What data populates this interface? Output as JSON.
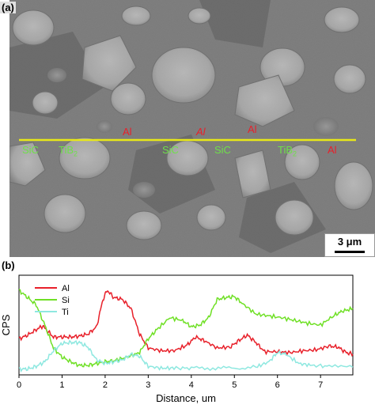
{
  "panel_a": {
    "label": "(a)",
    "phase_labels": [
      {
        "text": "Al",
        "color": "#e8202a"
      },
      {
        "text": "Al",
        "color": "#e8202a"
      },
      {
        "text": "Al",
        "color": "#e8202a"
      },
      {
        "text": "SiC",
        "color": "#6fe04a"
      },
      {
        "text": "TiB",
        "sub": "2",
        "color": "#6fe04a"
      },
      {
        "text": "SiC",
        "color": "#6fe04a"
      },
      {
        "text": "SiC",
        "color": "#6fe04a"
      },
      {
        "text": "TiB",
        "sub": "2",
        "color": "#6fe04a"
      },
      {
        "text": "Al",
        "color": "#e8202a"
      }
    ],
    "scan_line_color": "#e8e818",
    "scale_bar": "3 μm"
  },
  "panel_b": {
    "label": "(b)"
  },
  "chart_data": {
    "type": "line",
    "xlabel": "Distance, um",
    "ylabel": "CPS",
    "xlim": [
      0,
      7.75
    ],
    "x_ticks": [
      "0",
      "1",
      "2",
      "3",
      "4",
      "5",
      "6",
      "7"
    ],
    "y_ticks_labeled": false,
    "legend_position": "top-left",
    "series": [
      {
        "name": "Al",
        "color": "#e8202a",
        "points": [
          [
            0,
            0.35
          ],
          [
            0.2,
            0.39
          ],
          [
            0.4,
            0.45
          ],
          [
            0.55,
            0.49
          ],
          [
            0.65,
            0.44
          ],
          [
            0.8,
            0.37
          ],
          [
            1.0,
            0.37
          ],
          [
            1.2,
            0.37
          ],
          [
            1.4,
            0.38
          ],
          [
            1.6,
            0.4
          ],
          [
            1.8,
            0.48
          ],
          [
            1.95,
            0.78
          ],
          [
            2.05,
            0.88
          ],
          [
            2.2,
            0.8
          ],
          [
            2.4,
            0.78
          ],
          [
            2.6,
            0.68
          ],
          [
            2.8,
            0.4
          ],
          [
            3.0,
            0.25
          ],
          [
            3.3,
            0.22
          ],
          [
            3.6,
            0.22
          ],
          [
            3.9,
            0.28
          ],
          [
            4.1,
            0.37
          ],
          [
            4.3,
            0.33
          ],
          [
            4.6,
            0.25
          ],
          [
            4.9,
            0.26
          ],
          [
            5.1,
            0.33
          ],
          [
            5.3,
            0.39
          ],
          [
            5.5,
            0.31
          ],
          [
            5.7,
            0.21
          ],
          [
            6.0,
            0.21
          ],
          [
            6.3,
            0.2
          ],
          [
            6.6,
            0.22
          ],
          [
            6.9,
            0.23
          ],
          [
            7.2,
            0.27
          ],
          [
            7.4,
            0.26
          ],
          [
            7.6,
            0.2
          ],
          [
            7.75,
            0.18
          ]
        ]
      },
      {
        "name": "Si",
        "color": "#6fe025",
        "points": [
          [
            0,
            0.88
          ],
          [
            0.2,
            0.8
          ],
          [
            0.4,
            0.72
          ],
          [
            0.6,
            0.5
          ],
          [
            0.8,
            0.25
          ],
          [
            1.0,
            0.15
          ],
          [
            1.2,
            0.1
          ],
          [
            1.4,
            0.06
          ],
          [
            1.6,
            0.06
          ],
          [
            1.8,
            0.08
          ],
          [
            2.0,
            0.1
          ],
          [
            2.2,
            0.11
          ],
          [
            2.5,
            0.15
          ],
          [
            2.8,
            0.2
          ],
          [
            3.0,
            0.35
          ],
          [
            3.2,
            0.45
          ],
          [
            3.5,
            0.58
          ],
          [
            3.8,
            0.55
          ],
          [
            4.0,
            0.48
          ],
          [
            4.2,
            0.5
          ],
          [
            4.4,
            0.58
          ],
          [
            4.6,
            0.78
          ],
          [
            4.8,
            0.8
          ],
          [
            5.0,
            0.81
          ],
          [
            5.2,
            0.73
          ],
          [
            5.5,
            0.62
          ],
          [
            5.8,
            0.6
          ],
          [
            6.1,
            0.58
          ],
          [
            6.4,
            0.55
          ],
          [
            6.7,
            0.52
          ],
          [
            7.0,
            0.5
          ],
          [
            7.3,
            0.6
          ],
          [
            7.5,
            0.65
          ],
          [
            7.75,
            0.68
          ]
        ]
      },
      {
        "name": "Ti",
        "color": "#8ee8e0",
        "points": [
          [
            0,
            0.02
          ],
          [
            0.2,
            0.02
          ],
          [
            0.4,
            0.05
          ],
          [
            0.6,
            0.1
          ],
          [
            0.8,
            0.22
          ],
          [
            1.0,
            0.3
          ],
          [
            1.2,
            0.31
          ],
          [
            1.4,
            0.31
          ],
          [
            1.6,
            0.26
          ],
          [
            1.8,
            0.12
          ],
          [
            2.0,
            0.08
          ],
          [
            2.2,
            0.1
          ],
          [
            2.4,
            0.12
          ],
          [
            2.6,
            0.18
          ],
          [
            2.8,
            0.16
          ],
          [
            3.0,
            0.05
          ],
          [
            3.3,
            0.03
          ],
          [
            3.6,
            0.03
          ],
          [
            4.0,
            0.03
          ],
          [
            4.5,
            0.03
          ],
          [
            5.0,
            0.03
          ],
          [
            5.5,
            0.04
          ],
          [
            5.8,
            0.1
          ],
          [
            6.0,
            0.2
          ],
          [
            6.2,
            0.18
          ],
          [
            6.5,
            0.08
          ],
          [
            6.8,
            0.06
          ],
          [
            7.2,
            0.05
          ],
          [
            7.75,
            0.04
          ]
        ]
      }
    ]
  }
}
